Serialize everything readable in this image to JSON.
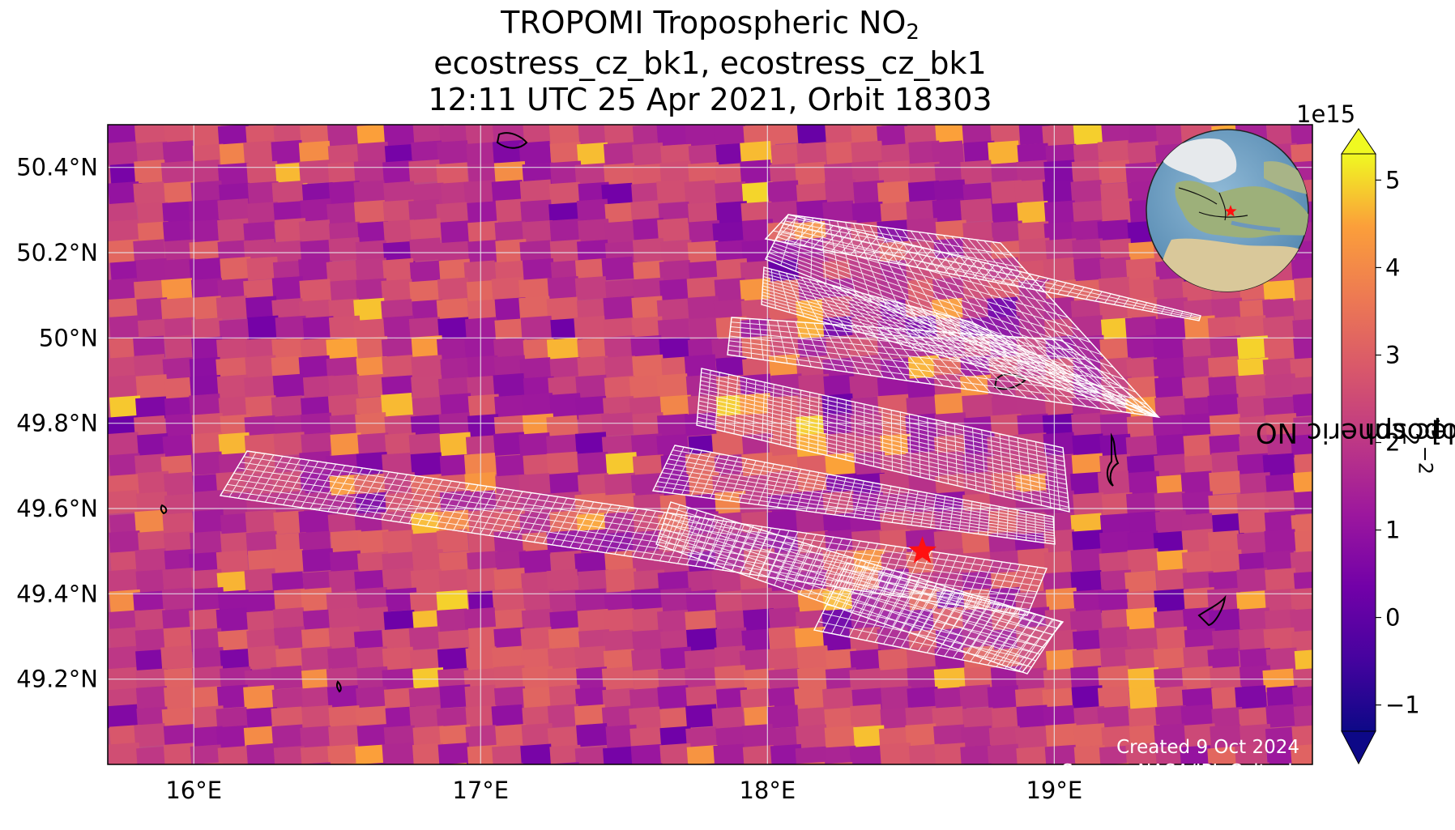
{
  "title": {
    "line1_prefix": "TROPOMI Tropospheric NO",
    "line1_sub": "2",
    "line2": "ecostress_cz_bk1, ecostress_cz_bk1",
    "line3": "12:11 UTC 25 Apr 2021, Orbit 18303"
  },
  "chart_data": {
    "type": "heatmap",
    "map_extent": {
      "lon": [
        15.7,
        19.9
      ],
      "lat": [
        49.0,
        50.5
      ]
    },
    "xticks": [
      {
        "value": 16,
        "label": "16°E"
      },
      {
        "value": 17,
        "label": "17°E"
      },
      {
        "value": 18,
        "label": "18°E"
      },
      {
        "value": 19,
        "label": "19°E"
      }
    ],
    "yticks": [
      {
        "value": 50.4,
        "label": "50.4°N"
      },
      {
        "value": 50.2,
        "label": "50.2°N"
      },
      {
        "value": 50.0,
        "label": "50°N"
      },
      {
        "value": 49.8,
        "label": "49.8°N"
      },
      {
        "value": 49.6,
        "label": "49.6°N"
      },
      {
        "value": 49.4,
        "label": "49.4°N"
      },
      {
        "value": 49.2,
        "label": "49.2°N"
      }
    ],
    "grid": true,
    "site_marker": {
      "lon": 18.54,
      "lat": 49.5,
      "symbol": "star",
      "color": "#ff1010"
    },
    "colorbar": {
      "colormap": "plasma",
      "range": [
        -1.3,
        5.3
      ],
      "ticks": [
        {
          "value": 5,
          "label": "5"
        },
        {
          "value": 4,
          "label": "4"
        },
        {
          "value": 3,
          "label": "3"
        },
        {
          "value": 2,
          "label": "2"
        },
        {
          "value": 1,
          "label": "1"
        },
        {
          "value": 0,
          "label": "0"
        },
        {
          "value": -1,
          "label": "−1"
        }
      ],
      "exponent_label": "1e15",
      "label_prefix": "TROPOMI Tropospheric NO",
      "label_sub": "2",
      "label_mid": " [molec cm",
      "label_sup": "−2",
      "label_suffix": "]",
      "extend": "both"
    }
  },
  "credits": {
    "created": "Created 9 Oct 2024",
    "source": "Source: NASA/JPL-Caltech"
  },
  "inset_globe": {
    "subject": "globe-orthographic",
    "marker_color": "#ff1010"
  }
}
